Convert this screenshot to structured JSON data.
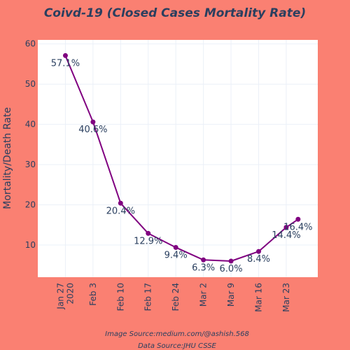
{
  "chart_data": {
    "type": "line",
    "title": "Coivd-19 (Closed Cases Mortality Rate)",
    "ylabel": "Mortality/Death Rate",
    "xlabel": "",
    "x_ticks": [
      "Jan 27\n2020",
      "Feb 3",
      "Feb 10",
      "Feb 17",
      "Feb 24",
      "Mar 2",
      "Mar 9",
      "Mar 16",
      "Mar 23"
    ],
    "y_ticks": [
      10,
      20,
      30,
      40,
      50,
      60
    ],
    "ylim": [
      2,
      61
    ],
    "xlim": [
      "2020-01-20",
      "2020-03-31"
    ],
    "line_color": "#800080",
    "grid": true,
    "legend": "none",
    "series": [
      {
        "points": [
          {
            "x": "2020-01-27",
            "y": 57.1,
            "label": "57.1%"
          },
          {
            "x": "2020-02-03",
            "y": 40.6,
            "label": "40.6%"
          },
          {
            "x": "2020-02-10",
            "y": 20.4,
            "label": "20.4%"
          },
          {
            "x": "2020-02-17",
            "y": 12.9,
            "label": "12.9%"
          },
          {
            "x": "2020-02-24",
            "y": 9.4,
            "label": "9.4%"
          },
          {
            "x": "2020-03-02",
            "y": 6.3,
            "label": "6.3%"
          },
          {
            "x": "2020-03-09",
            "y": 6.0,
            "label": "6.0%"
          },
          {
            "x": "2020-03-16",
            "y": 8.4,
            "label": "8.4%"
          },
          {
            "x": "2020-03-23",
            "y": 14.4,
            "label": "14.4%"
          },
          {
            "x": "2020-03-26",
            "y": 16.4,
            "label": "16.4%"
          }
        ]
      }
    ]
  },
  "footer": {
    "image_source": "Image Source:medium.com/@ashish.568",
    "data_source": "Data Source:JHU CSSE"
  }
}
